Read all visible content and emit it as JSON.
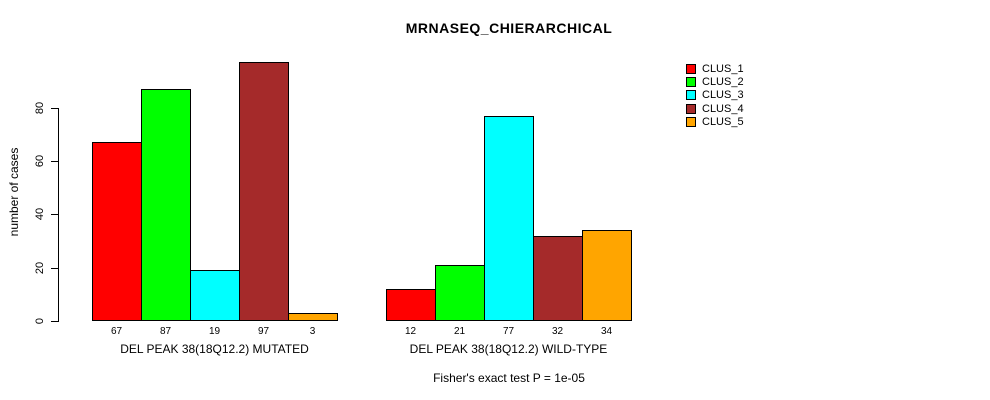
{
  "page_background": "#FFFFFF",
  "chart_data": {
    "type": "bar",
    "title": "MRNASEQ_CHIERARCHICAL",
    "ylabel": "number of cases",
    "xlabel": "",
    "categories": [
      "DEL PEAK 38(18Q12.2) MUTATED",
      "DEL PEAK 38(18Q12.2) WILD-TYPE"
    ],
    "series": [
      {
        "name": "CLUS_1",
        "color": "#FF0000",
        "values": [
          67,
          12
        ]
      },
      {
        "name": "CLUS_2",
        "color": "#00FF00",
        "values": [
          87,
          21
        ]
      },
      {
        "name": "CLUS_3",
        "color": "#00FFFF",
        "values": [
          19,
          77
        ]
      },
      {
        "name": "CLUS_4",
        "color": "#A52A2A",
        "values": [
          97,
          32
        ]
      },
      {
        "name": "CLUS_5",
        "color": "#FFA500",
        "values": [
          3,
          34
        ]
      }
    ],
    "yticks": [
      0,
      20,
      40,
      60,
      80
    ],
    "ylim": [
      0,
      100
    ],
    "grid": false,
    "bar_value_labels_shown": true,
    "legend_position": "top-right",
    "annotation": "Fisher's exact test P = 1e-05"
  }
}
